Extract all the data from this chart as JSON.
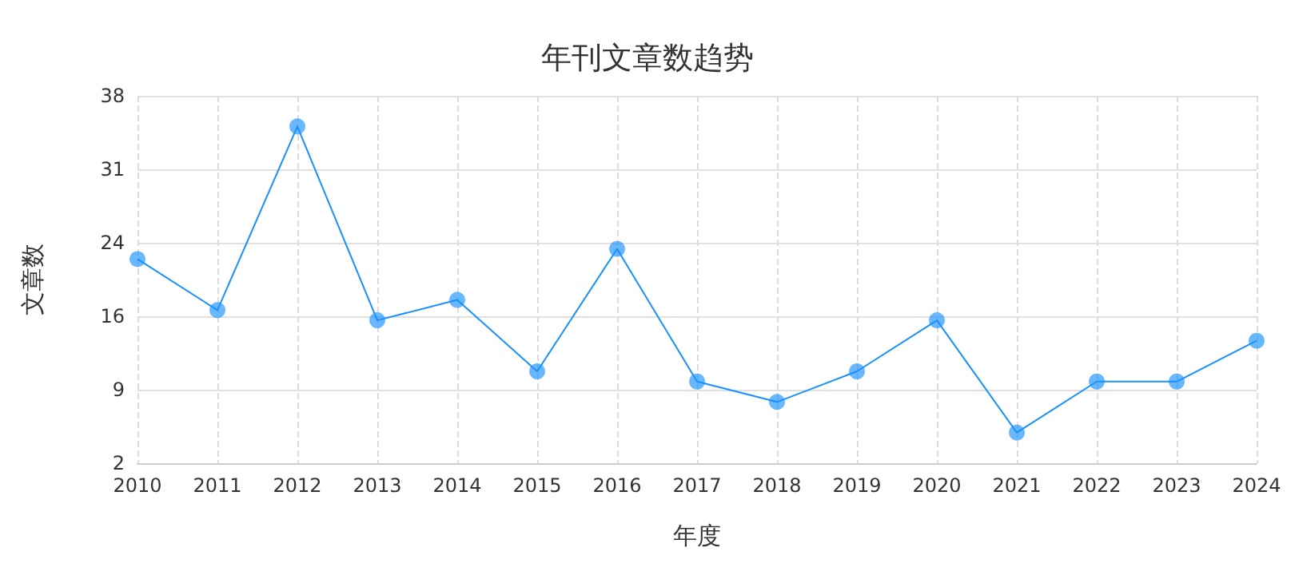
{
  "chart_data": {
    "type": "line",
    "title": "年刊文章数趋势",
    "xlabel": "年度",
    "ylabel": "文章数",
    "categories": [
      "2010",
      "2011",
      "2012",
      "2013",
      "2014",
      "2015",
      "2016",
      "2017",
      "2018",
      "2019",
      "2020",
      "2021",
      "2022",
      "2023",
      "2024"
    ],
    "series": [
      {
        "color": "#1890ff",
        "values": [
          22,
          17,
          35,
          16,
          18,
          11,
          23,
          10,
          8,
          11,
          16,
          5,
          10,
          10,
          14
        ]
      }
    ],
    "ylim": [
      2,
      38
    ],
    "yticks": [
      {
        "value": 2,
        "label": "2"
      },
      {
        "value": 9.2,
        "label": "9"
      },
      {
        "value": 16.4,
        "label": "16"
      },
      {
        "value": 23.6,
        "label": "24"
      },
      {
        "value": 30.8,
        "label": "31"
      },
      {
        "value": 38,
        "label": "38"
      }
    ],
    "grid": true,
    "marker": "circle",
    "line_style": "solid"
  }
}
